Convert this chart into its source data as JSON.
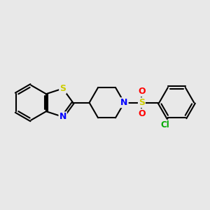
{
  "bg_color": "#e8e8e8",
  "bond_color": "#000000",
  "bond_width": 1.5,
  "atom_colors": {
    "S": "#cccc00",
    "N": "#0000ff",
    "O": "#ff0000",
    "Cl": "#00aa00"
  },
  "font_size": 9,
  "font_size_cl": 8.5
}
